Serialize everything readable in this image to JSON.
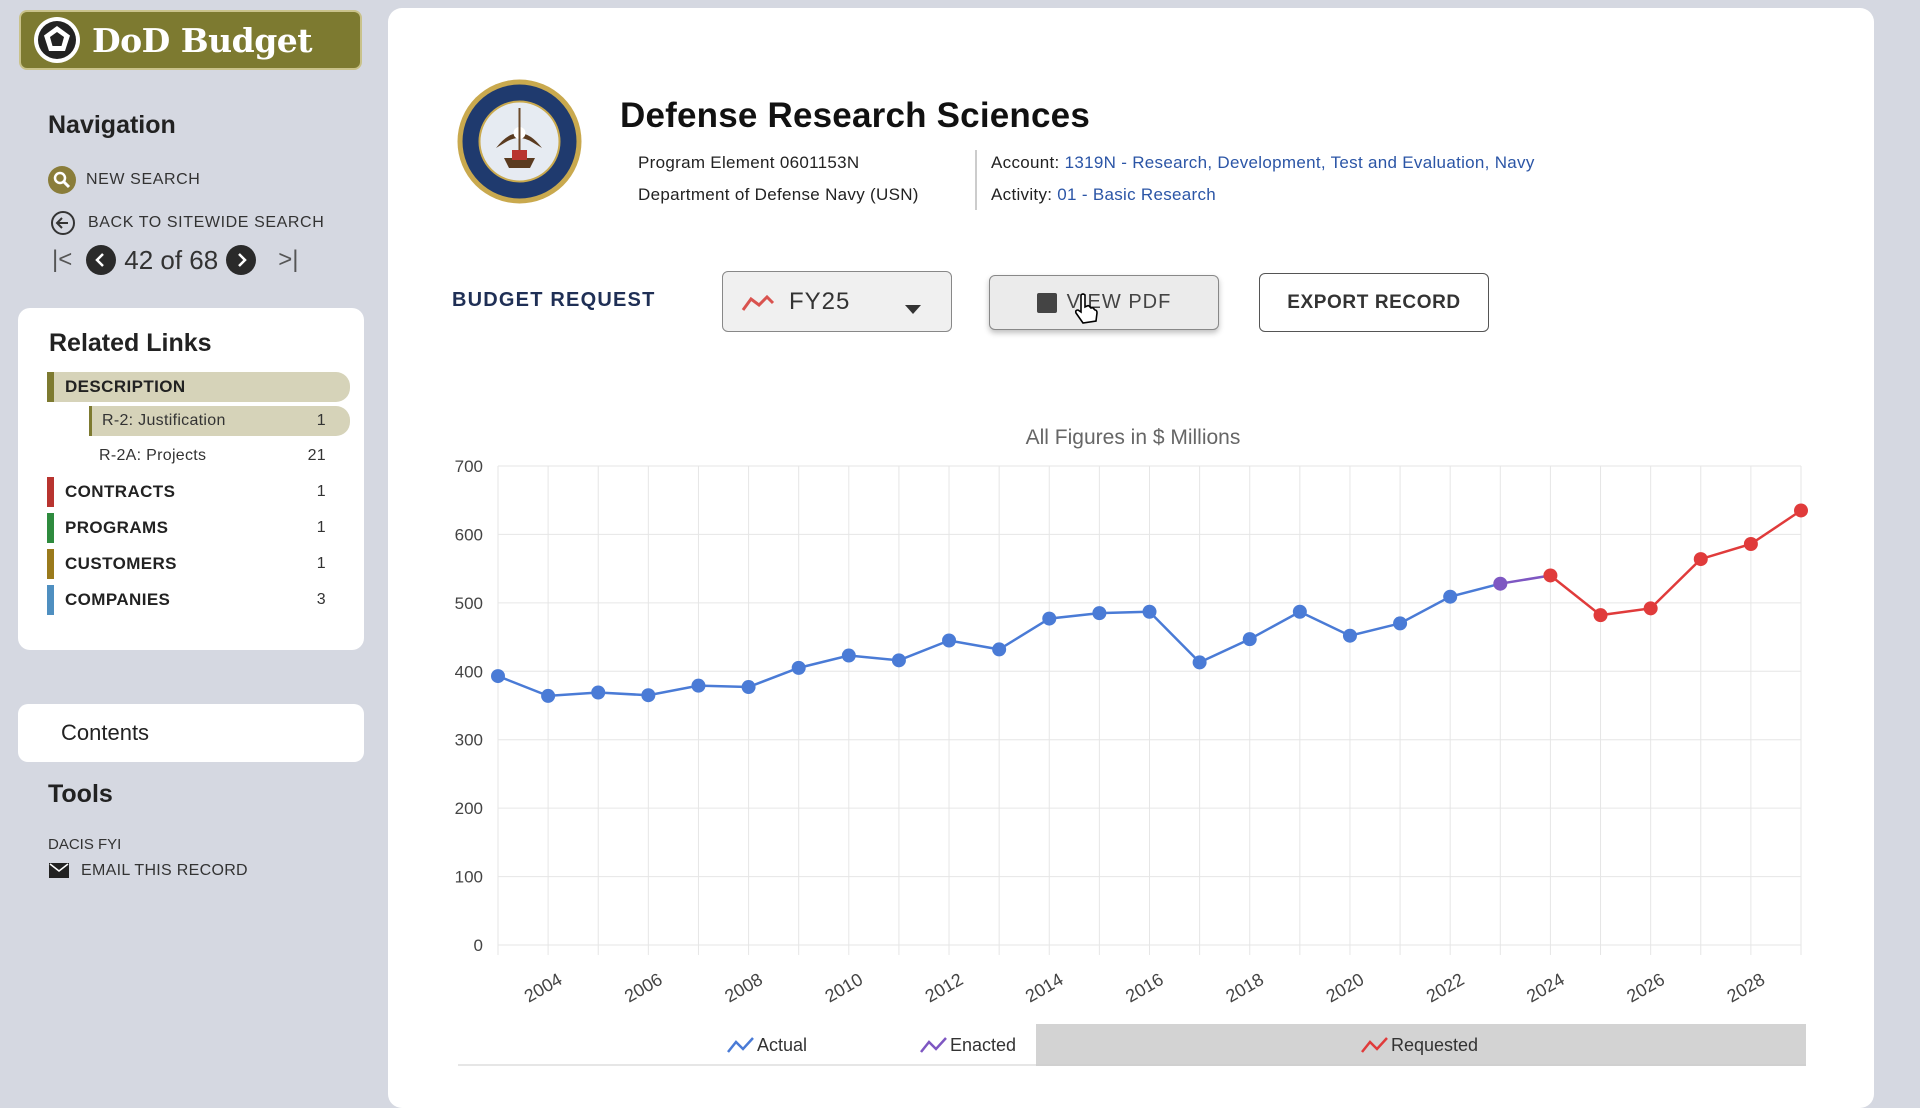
{
  "app": {
    "title": "DoD Budget"
  },
  "sidebar": {
    "navigation_heading": "Navigation",
    "new_search": "NEW SEARCH",
    "back_to_sitewide": "BACK TO SITEWIDE SEARCH",
    "pager": {
      "current": 42,
      "total": 68,
      "text": "42 of 68"
    },
    "related_links_heading": "Related Links",
    "related_links": [
      {
        "label": "DESCRIPTION",
        "color": "#7d7a30",
        "count": "",
        "active": true
      },
      {
        "label": "R-2: Justification",
        "count": "1",
        "sub": true,
        "active": true
      },
      {
        "label": "R-2A: Projects",
        "count": "21",
        "sub": true,
        "active": false
      },
      {
        "label": "CONTRACTS",
        "color": "#b8342f",
        "count": "1"
      },
      {
        "label": "PROGRAMS",
        "color": "#2e8b3e",
        "count": "1"
      },
      {
        "label": "CUSTOMERS",
        "color": "#9a7a1c",
        "count": "1"
      },
      {
        "label": "COMPANIES",
        "color": "#4f8fc0",
        "count": "3"
      }
    ],
    "contents_label": "Contents",
    "tools_heading": "Tools",
    "tools_sub": "DACIS FYI",
    "email_record": "EMAIL THIS RECORD"
  },
  "record": {
    "title": "Defense Research Sciences",
    "program_element_label": "Program Element",
    "program_element": "0601153N",
    "department": "Department of Defense Navy (USN)",
    "account_label": "Account:",
    "account": "1319N - Research, Development, Test and Evaluation, Navy",
    "activity_label": "Activity:",
    "activity": "01 - Basic Research"
  },
  "toolbar": {
    "budget_request_label": "BUDGET REQUEST",
    "fy_selected": "FY25",
    "view_pdf_label": "VIEW PDF",
    "export_label": "EXPORT RECORD"
  },
  "chart_data": {
    "type": "line",
    "title": "All Figures in $ Millions",
    "ylim": [
      0,
      700
    ],
    "yticks": [
      0,
      100,
      200,
      300,
      400,
      500,
      600,
      700
    ],
    "xticks": [
      "2004",
      "2006",
      "2008",
      "2010",
      "2012",
      "2014",
      "2016",
      "2018",
      "2020",
      "2022",
      "2024",
      "2026",
      "2028"
    ],
    "x": [
      2003,
      2004,
      2005,
      2006,
      2007,
      2008,
      2009,
      2010,
      2011,
      2012,
      2013,
      2014,
      2015,
      2016,
      2017,
      2018,
      2019,
      2020,
      2021,
      2022,
      2023,
      2024,
      2025,
      2026,
      2027,
      2028,
      2029
    ],
    "series": [
      {
        "name": "Actual",
        "color": "#4a7bd6",
        "x": [
          2003,
          2004,
          2005,
          2006,
          2007,
          2008,
          2009,
          2010,
          2011,
          2012,
          2013,
          2014,
          2015,
          2016,
          2017,
          2018,
          2019,
          2020,
          2021,
          2022,
          2023
        ],
        "values": [
          393,
          364,
          369,
          365,
          379,
          377,
          405,
          423,
          416,
          445,
          432,
          477,
          485,
          487,
          413,
          447,
          487,
          452,
          470,
          509,
          528
        ]
      },
      {
        "name": "Enacted",
        "color": "#7e57c2",
        "x": [
          2023,
          2024
        ],
        "values": [
          528,
          540
        ]
      },
      {
        "name": "Requested",
        "color": "#e03b3b",
        "x": [
          2024,
          2025,
          2026,
          2027,
          2028,
          2029
        ],
        "values": [
          540,
          482,
          492,
          564,
          586,
          635
        ]
      }
    ],
    "legend": [
      "Actual",
      "Enacted",
      "Requested"
    ],
    "legend_position": "bottom"
  }
}
